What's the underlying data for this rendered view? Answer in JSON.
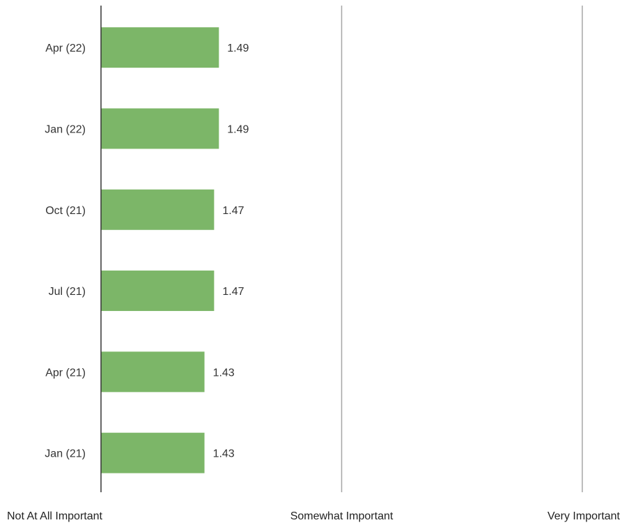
{
  "chart_data": {
    "type": "bar",
    "orientation": "horizontal",
    "categories": [
      "Apr (22)",
      "Jan (22)",
      "Oct (21)",
      "Jul (21)",
      "Apr (21)",
      "Jan (21)"
    ],
    "values": [
      1.49,
      1.49,
      1.47,
      1.47,
      1.43,
      1.43
    ],
    "value_labels": [
      "1.49",
      "1.49",
      "1.47",
      "1.47",
      "1.43",
      "1.43"
    ],
    "xlim": [
      1,
      3
    ],
    "x_ticks": [
      1,
      2,
      3
    ],
    "x_tick_labels": [
      "Not At All Important",
      "Somewhat Important",
      "Very Important"
    ],
    "grid": "vertical",
    "legend": "none",
    "bar_color": "#7cb668",
    "axis_color": "#333333",
    "grid_color": "#a6a6a6"
  }
}
